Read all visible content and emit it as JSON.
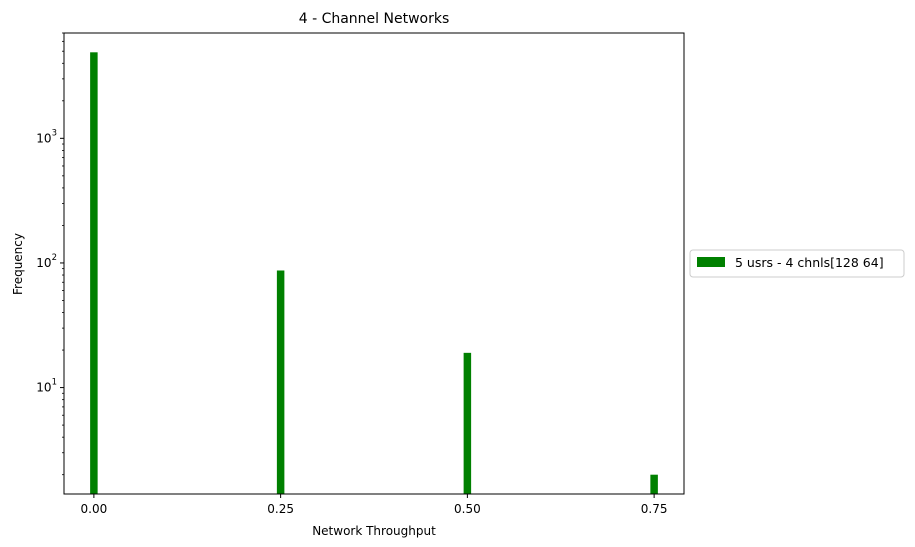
{
  "chart_data": {
    "type": "bar",
    "title": "4 - Channel Networks",
    "xlabel": "Network Throughput",
    "ylabel": "Frequency",
    "yscale": "log",
    "xlim": [
      -0.04,
      0.79
    ],
    "ylim": [
      1.4,
      7000
    ],
    "x_ticks": [
      {
        "value": 0.0,
        "label": "0.00"
      },
      {
        "value": 0.25,
        "label": "0.25"
      },
      {
        "value": 0.5,
        "label": "0.50"
      },
      {
        "value": 0.75,
        "label": "0.75"
      }
    ],
    "y_ticks": [
      {
        "value": 10,
        "base": "10",
        "exp": "1"
      },
      {
        "value": 100,
        "base": "10",
        "exp": "2"
      },
      {
        "value": 1000,
        "base": "10",
        "exp": "3"
      }
    ],
    "legend_position": "outside-right",
    "series": [
      {
        "name": "5 usrs - 4 chnls[128 64]",
        "color": "#008000",
        "x": [
          0.0,
          0.25,
          0.5,
          0.75
        ],
        "values": [
          4900,
          87,
          19,
          2
        ]
      }
    ]
  }
}
